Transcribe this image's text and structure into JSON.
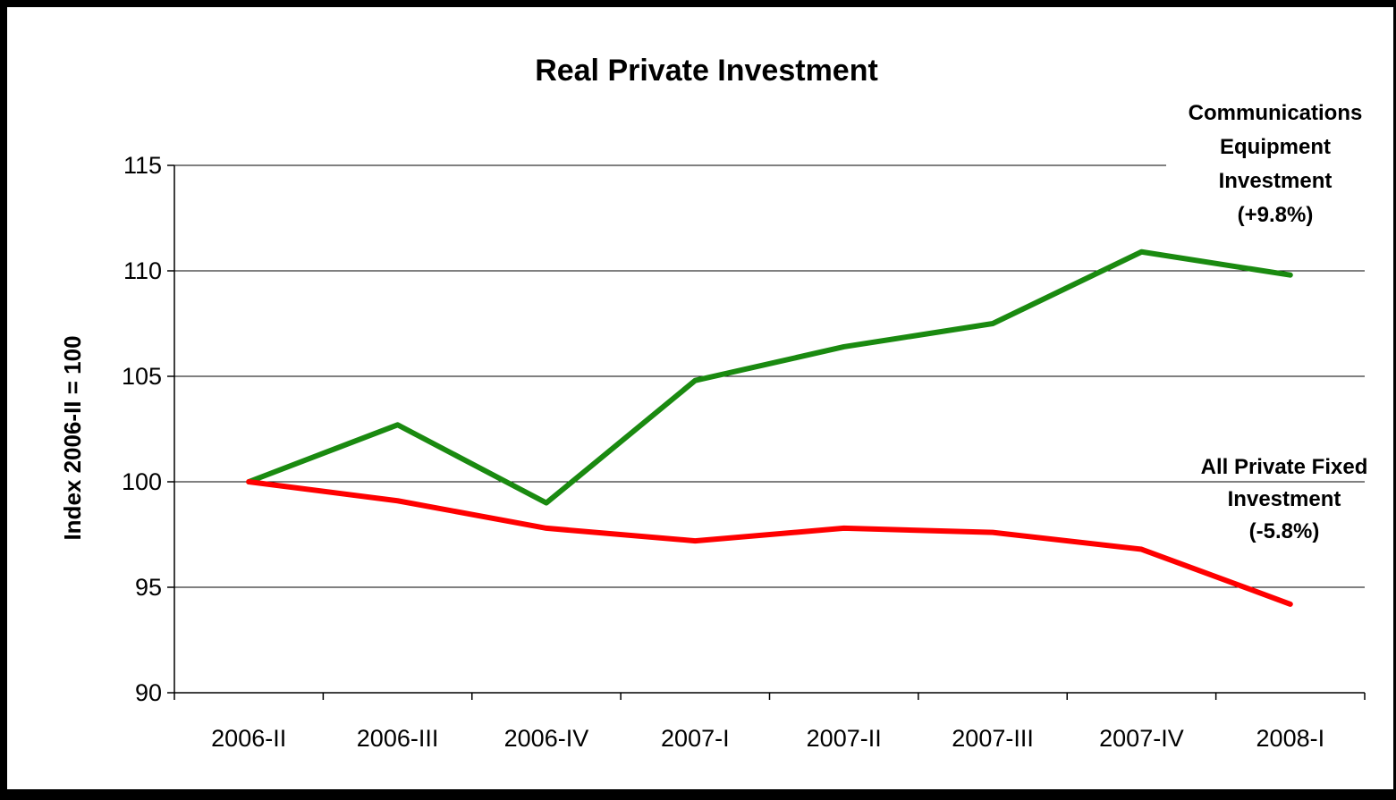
{
  "chart_data": {
    "type": "line",
    "title": "Real Private Investment",
    "xlabel": "",
    "ylabel": "Index 2006-II = 100",
    "categories": [
      "2006-II",
      "2006-III",
      "2006-IV",
      "2007-I",
      "2007-II",
      "2007-III",
      "2007-IV",
      "2008-I"
    ],
    "ylim": [
      90,
      115
    ],
    "yticks": [
      90,
      95,
      100,
      105,
      110,
      115
    ],
    "grid": "horizontal",
    "legend": "none",
    "series": [
      {
        "values": [
          100.0,
          102.7,
          99.0,
          104.8,
          106.4,
          107.5,
          110.9,
          109.8
        ],
        "color": "#1a8a10"
      },
      {
        "values": [
          100.0,
          99.1,
          97.8,
          97.2,
          97.8,
          97.6,
          96.8,
          94.2
        ],
        "color": "#ff0000"
      }
    ],
    "annotations": [
      {
        "id": "communications",
        "lines": [
          "Communications",
          "Equipment",
          "Investment",
          "(+9.8%)"
        ]
      },
      {
        "id": "all-private",
        "lines": [
          "All Private Fixed",
          "Investment",
          "(-5.8%)"
        ]
      }
    ]
  }
}
